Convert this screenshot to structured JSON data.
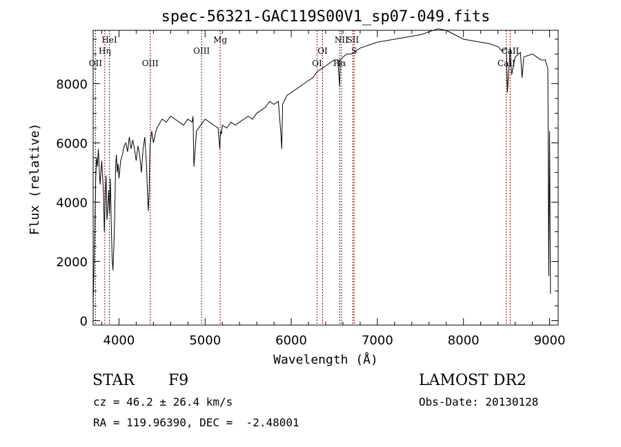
{
  "chart_data": {
    "type": "line",
    "title": "spec-56321-GAC119S00V1_sp07-049.fits",
    "xlabel": "Wavelength (Å)",
    "ylabel": "Flux (relative)",
    "xlim": [
      3700,
      9100
    ],
    "ylim": [
      -150,
      9800
    ],
    "grid": false,
    "xticks": [
      {
        "value": 4000,
        "label": "4000"
      },
      {
        "value": 5000,
        "label": "5000"
      },
      {
        "value": 6000,
        "label": "6000"
      },
      {
        "value": 7000,
        "label": "7000"
      },
      {
        "value": 8000,
        "label": "8000"
      },
      {
        "value": 9000,
        "label": "9000"
      }
    ],
    "yticks": [
      {
        "value": 0,
        "label": "0"
      },
      {
        "value": 2000,
        "label": "2000"
      },
      {
        "value": 4000,
        "label": "4000"
      },
      {
        "value": 6000,
        "label": "6000"
      },
      {
        "value": 8000,
        "label": "8000"
      }
    ],
    "series": [
      {
        "color": "#000000",
        "x": [
          3700,
          3710,
          3720,
          3730,
          3740,
          3750,
          3760,
          3780,
          3800,
          3820,
          3830,
          3840,
          3850,
          3860,
          3870,
          3880,
          3890,
          3900,
          3910,
          3920,
          3930,
          3940,
          3950,
          3960,
          3970,
          3980,
          3990,
          4000,
          4020,
          4040,
          4060,
          4080,
          4100,
          4120,
          4140,
          4160,
          4180,
          4200,
          4220,
          4240,
          4260,
          4280,
          4300,
          4320,
          4330,
          4340,
          4350,
          4360,
          4380,
          4400,
          4420,
          4440,
          4460,
          4480,
          4500,
          4550,
          4600,
          4650,
          4700,
          4750,
          4800,
          4850,
          4860,
          4870,
          4900,
          4950,
          5000,
          5050,
          5100,
          5150,
          5170,
          5180,
          5190,
          5200,
          5250,
          5300,
          5350,
          5400,
          5450,
          5500,
          5550,
          5600,
          5650,
          5700,
          5750,
          5800,
          5850,
          5880,
          5890,
          5900,
          5950,
          6000,
          6050,
          6100,
          6150,
          6200,
          6250,
          6300,
          6350,
          6400,
          6450,
          6500,
          6540,
          6550,
          6563,
          6570,
          6600,
          6650,
          6700,
          6750,
          6800,
          6850,
          6900,
          6950,
          7000,
          7100,
          7200,
          7300,
          7400,
          7500,
          7600,
          7700,
          7800,
          7900,
          8000,
          8100,
          8200,
          8300,
          8400,
          8450,
          8498,
          8510,
          8542,
          8560,
          8600,
          8662,
          8680,
          8700,
          8800,
          8850,
          8900,
          8950,
          8980,
          8990,
          9000,
          9010
        ],
        "values": [
          500,
          1800,
          3200,
          4800,
          5500,
          5200,
          5800,
          4600,
          5400,
          4300,
          3000,
          4100,
          4900,
          3400,
          3800,
          4400,
          3600,
          4800,
          3300,
          2100,
          1700,
          2500,
          3500,
          5200,
          5600,
          5000,
          5300,
          4800,
          5400,
          5600,
          5900,
          6000,
          5700,
          6200,
          5800,
          6100,
          5800,
          5400,
          5900,
          5600,
          5000,
          5800,
          6200,
          5200,
          4400,
          3700,
          4300,
          5900,
          6400,
          6000,
          6300,
          6500,
          6600,
          6700,
          6800,
          6700,
          6900,
          6800,
          6700,
          6600,
          6800,
          6700,
          6900,
          5200,
          6400,
          6600,
          6800,
          6700,
          6600,
          6500,
          5800,
          6400,
          6300,
          6600,
          6500,
          6700,
          6600,
          6700,
          6800,
          6900,
          6800,
          7000,
          7100,
          7200,
          7400,
          7300,
          7400,
          6300,
          5800,
          7300,
          7600,
          7700,
          7800,
          7900,
          8000,
          8100,
          8200,
          8400,
          8500,
          8600,
          8700,
          8800,
          8800,
          8400,
          7900,
          8800,
          8900,
          9000,
          9000,
          9100,
          9200,
          9250,
          9300,
          9350,
          9400,
          9450,
          9500,
          9550,
          9600,
          9650,
          9750,
          9850,
          9800,
          9650,
          9500,
          9450,
          9400,
          9350,
          9250,
          9100,
          9200,
          7700,
          9200,
          8300,
          8900,
          9050,
          8200,
          8900,
          9000,
          8900,
          8800,
          8800,
          8500,
          1500,
          6400,
          900
        ]
      }
    ],
    "lines": [
      {
        "label": "OII",
        "x": 3727,
        "row": 3
      },
      {
        "label": "HeI",
        "x": 3889,
        "row": 1
      },
      {
        "label": "Hη",
        "x": 3835,
        "row": 2
      },
      {
        "label": "OIII",
        "x": 4363,
        "row": 3
      },
      {
        "label": "OIII",
        "x": 4959,
        "row": 2
      },
      {
        "label": "Mg",
        "x": 5175,
        "row": 1
      },
      {
        "label": "OI",
        "x": 6300,
        "row": 3
      },
      {
        "label": "OI",
        "x": 6364,
        "row": 2
      },
      {
        "label": "NII",
        "x": 6583,
        "row": 1
      },
      {
        "label": "SII",
        "x": 6716,
        "row": 1
      },
      {
        "label": "S",
        "x": 6731,
        "row": 2
      },
      {
        "label": "Hα",
        "x": 6563,
        "row": 3
      },
      {
        "label": "CaII",
        "x": 8542,
        "row": 2
      },
      {
        "label": "CaII",
        "x": 8498,
        "row": 3
      }
    ]
  },
  "info": {
    "class_label": "STAR",
    "subclass": "F9",
    "survey": "LAMOST DR2",
    "cz_line": "cz = 46.2 ± 26.4 km/s",
    "obs_date_line": "Obs-Date: 20130128",
    "coords_line": "RA = 119.96390, DEC =  -2.48001"
  }
}
